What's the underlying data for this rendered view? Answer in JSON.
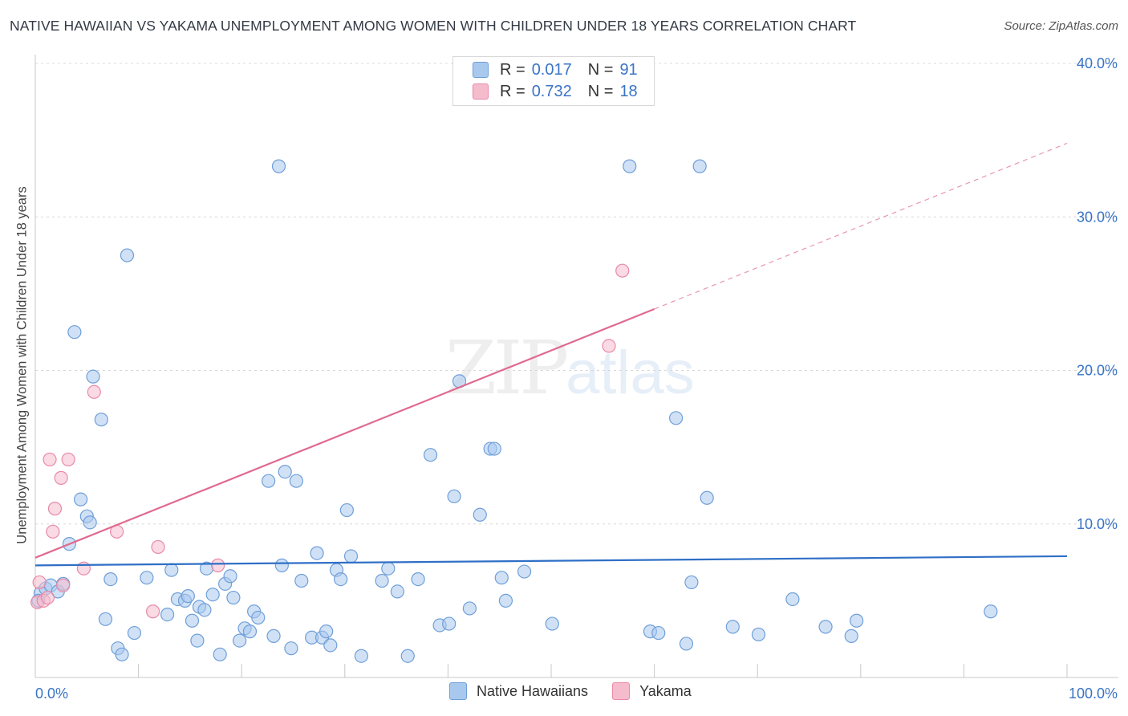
{
  "header": {
    "title": "NATIVE HAWAIIAN VS YAKAMA UNEMPLOYMENT AMONG WOMEN WITH CHILDREN UNDER 18 YEARS CORRELATION CHART",
    "source": "Source: ZipAtlas.com"
  },
  "watermark": {
    "zip": "ZIP",
    "atlas": "atlas"
  },
  "legend": {
    "series1": {
      "r_label": "R =",
      "r_value": "0.017",
      "n_label": "N =",
      "n_value": "91"
    },
    "series2": {
      "r_label": "R =",
      "r_value": "0.732",
      "n_label": "N =",
      "n_value": "18"
    }
  },
  "bottom_legend": {
    "series1": "Native Hawaiians",
    "series2": "Yakama"
  },
  "colors": {
    "native_fill": "#a9c8ee",
    "native_stroke": "#6f9fd8",
    "native_line": "#2f6fc6",
    "yakama_fill": "#f5bccd",
    "yakama_stroke": "#e88aa6",
    "yakama_line": "#e06a90",
    "tick_text": "#3a74c4",
    "grid": "#d8d8d8"
  },
  "chart_data": {
    "type": "scatter",
    "title": "NATIVE HAWAIIAN VS YAKAMA UNEMPLOYMENT AMONG WOMEN WITH CHILDREN UNDER 18 YEARS CORRELATION CHART",
    "xlabel": "",
    "ylabel": "Unemployment Among Women with Children Under 18 years",
    "xlim": [
      0,
      100
    ],
    "ylim": [
      0,
      40
    ],
    "x_tick_labels": [
      {
        "value": 0,
        "label": "0.0%"
      },
      {
        "value": 100,
        "label": "100.0%"
      }
    ],
    "y_tick_labels": [
      {
        "value": 10,
        "label": "10.0%"
      },
      {
        "value": 20,
        "label": "20.0%"
      },
      {
        "value": 30,
        "label": "30.0%"
      },
      {
        "value": 40,
        "label": "40.0%"
      }
    ],
    "y_gridlines": [
      10,
      20,
      30,
      40
    ],
    "x_minor_ticks": [
      10,
      20,
      30,
      40,
      50,
      60,
      70,
      80,
      90,
      100
    ],
    "series": [
      {
        "name": "Native Hawaiians",
        "r": 0.017,
        "n": 91,
        "trend": {
          "x": [
            0,
            100
          ],
          "y": [
            7.3,
            7.9
          ],
          "dashed_from": null
        },
        "points": [
          [
            0.5,
            5.5
          ],
          [
            1,
            5.8
          ],
          [
            1.5,
            6.0
          ],
          [
            2.2,
            5.6
          ],
          [
            2.7,
            6.1
          ],
          [
            3.3,
            8.7
          ],
          [
            3.8,
            22.5
          ],
          [
            4.4,
            11.6
          ],
          [
            5,
            10.5
          ],
          [
            5.3,
            10.1
          ],
          [
            5.6,
            19.6
          ],
          [
            6.4,
            16.8
          ],
          [
            6.8,
            3.8
          ],
          [
            7.3,
            6.4
          ],
          [
            8,
            1.9
          ],
          [
            8.4,
            1.5
          ],
          [
            8.9,
            27.5
          ],
          [
            9.6,
            2.9
          ],
          [
            10.8,
            6.5
          ],
          [
            12.8,
            4.1
          ],
          [
            13.2,
            7.0
          ],
          [
            13.8,
            5.1
          ],
          [
            14.5,
            5.0
          ],
          [
            14.8,
            5.3
          ],
          [
            15.2,
            3.7
          ],
          [
            15.7,
            2.4
          ],
          [
            15.9,
            4.6
          ],
          [
            16.4,
            4.4
          ],
          [
            16.6,
            7.1
          ],
          [
            17.2,
            5.4
          ],
          [
            17.9,
            1.5
          ],
          [
            18.4,
            6.1
          ],
          [
            18.9,
            6.6
          ],
          [
            19.2,
            5.2
          ],
          [
            19.8,
            2.4
          ],
          [
            20.3,
            3.2
          ],
          [
            20.8,
            3.0
          ],
          [
            21.2,
            4.3
          ],
          [
            21.6,
            3.9
          ],
          [
            22.6,
            12.8
          ],
          [
            23.1,
            2.7
          ],
          [
            23.6,
            33.3
          ],
          [
            23.9,
            7.3
          ],
          [
            24.2,
            13.4
          ],
          [
            24.8,
            1.9
          ],
          [
            25.3,
            12.8
          ],
          [
            25.8,
            6.3
          ],
          [
            26.8,
            2.6
          ],
          [
            27.3,
            8.1
          ],
          [
            27.8,
            2.6
          ],
          [
            28.2,
            3.0
          ],
          [
            28.6,
            2.1
          ],
          [
            29.2,
            7.0
          ],
          [
            29.6,
            6.4
          ],
          [
            30.2,
            10.9
          ],
          [
            30.6,
            7.9
          ],
          [
            31.6,
            1.4
          ],
          [
            33.6,
            6.3
          ],
          [
            34.2,
            7.1
          ],
          [
            35.1,
            5.6
          ],
          [
            36.1,
            1.4
          ],
          [
            37.1,
            6.4
          ],
          [
            38.3,
            14.5
          ],
          [
            39.2,
            3.4
          ],
          [
            40.1,
            3.5
          ],
          [
            40.6,
            11.8
          ],
          [
            41.1,
            19.3
          ],
          [
            42.1,
            4.5
          ],
          [
            43.1,
            10.6
          ],
          [
            44.1,
            14.9
          ],
          [
            44.5,
            14.9
          ],
          [
            45.2,
            6.5
          ],
          [
            45.6,
            5.0
          ],
          [
            47.4,
            6.9
          ],
          [
            50.1,
            3.5
          ],
          [
            57.6,
            33.3
          ],
          [
            59.6,
            3.0
          ],
          [
            60.4,
            2.9
          ],
          [
            62.1,
            16.9
          ],
          [
            63.1,
            2.2
          ],
          [
            63.6,
            6.2
          ],
          [
            64.4,
            33.3
          ],
          [
            65.1,
            11.7
          ],
          [
            67.6,
            3.3
          ],
          [
            70.1,
            2.8
          ],
          [
            73.4,
            5.1
          ],
          [
            76.6,
            3.3
          ],
          [
            79.1,
            2.7
          ],
          [
            79.6,
            3.7
          ],
          [
            92.6,
            4.3
          ],
          [
            0.3,
            5.0
          ]
        ]
      },
      {
        "name": "Yakama",
        "r": 0.732,
        "n": 18,
        "trend": {
          "x": [
            0,
            100
          ],
          "y": [
            7.8,
            34.8
          ],
          "dashed_from": 60
        },
        "points": [
          [
            0.2,
            4.9
          ],
          [
            0.4,
            6.2
          ],
          [
            0.8,
            5.0
          ],
          [
            1.2,
            5.2
          ],
          [
            1.4,
            14.2
          ],
          [
            1.7,
            9.5
          ],
          [
            1.9,
            11.0
          ],
          [
            2.5,
            13.0
          ],
          [
            2.7,
            6.0
          ],
          [
            3.2,
            14.2
          ],
          [
            4.7,
            7.1
          ],
          [
            5.7,
            18.6
          ],
          [
            7.9,
            9.5
          ],
          [
            11.4,
            4.3
          ],
          [
            11.9,
            8.5
          ],
          [
            17.7,
            7.3
          ],
          [
            55.6,
            21.6
          ],
          [
            56.9,
            26.5
          ]
        ]
      }
    ]
  }
}
